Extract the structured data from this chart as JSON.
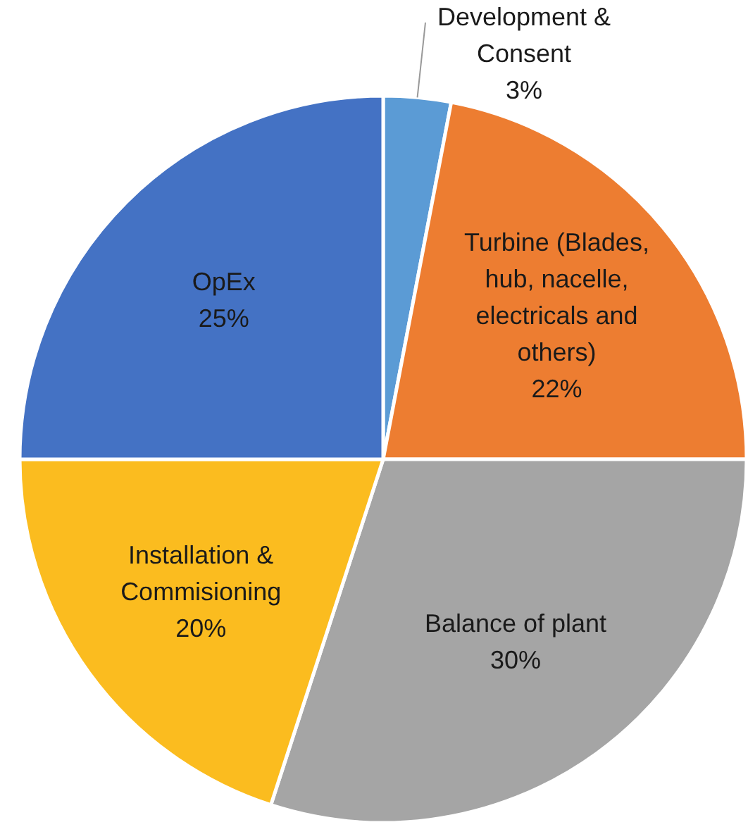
{
  "chart_data": {
    "type": "pie",
    "categories": [
      "Development & Consent",
      "Turbine (Blades, hub, nacelle, electricals and others)",
      "Balance of plant",
      "Installation & Commisioning",
      "OpEx"
    ],
    "values": [
      3,
      22,
      30,
      20,
      25
    ],
    "colors": [
      "#5b9bd5",
      "#ed7d31",
      "#a5a5a5",
      "#fbbc1f",
      "#4472c4"
    ],
    "value_labels": [
      "3%",
      "22%",
      "30%",
      "20%",
      "25%"
    ],
    "legend": false
  }
}
